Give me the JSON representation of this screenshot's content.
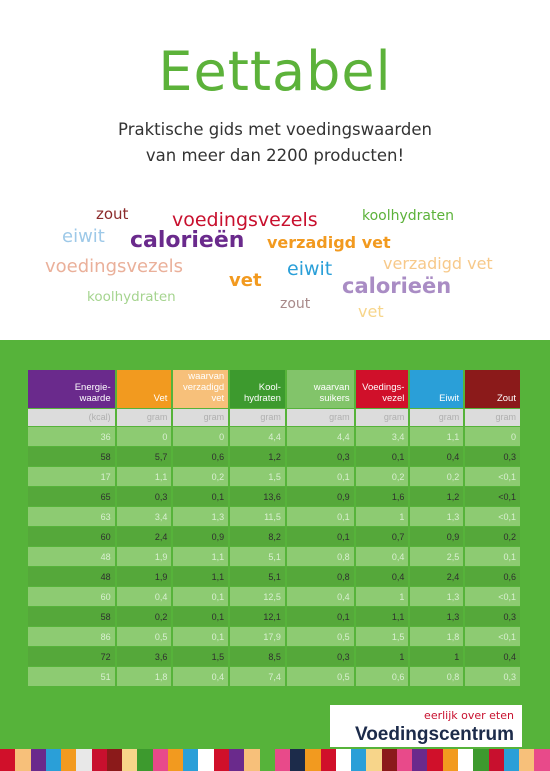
{
  "title": "Eettabel",
  "subtitle_line1": "Praktische gids met voedingswaarden",
  "subtitle_line2": "van meer dan 2200 producten!",
  "word_cloud": [
    {
      "text": "zout",
      "color": "#8b2a2a"
    },
    {
      "text": "voedingsvezels",
      "color": "#c8102e"
    },
    {
      "text": "koolhydraten",
      "color": "#5cb23a"
    },
    {
      "text": "eiwit",
      "color": "#9ec9e8"
    },
    {
      "text": "calorieën",
      "color": "#6a2a8c"
    },
    {
      "text": "verzadigd vet",
      "color": "#f29a1f"
    },
    {
      "text": "voedingsvezels",
      "color": "#eab09a"
    },
    {
      "text": "eiwit",
      "color": "#2a9fd8"
    },
    {
      "text": "verzadigd vet",
      "color": "#f7c98a"
    },
    {
      "text": "vet",
      "color": "#f29a1f"
    },
    {
      "text": "calorieën",
      "color": "#a98cc4"
    },
    {
      "text": "koolhydraten",
      "color": "#a5d48f"
    },
    {
      "text": "zout",
      "color": "#a88a8a"
    },
    {
      "text": "vet",
      "color": "#f7d58a"
    }
  ],
  "table": {
    "columns": [
      {
        "label": "Energie-\nwaarde",
        "unit": "(kcal)",
        "color": "#6a2a8c"
      },
      {
        "label": "Vet",
        "unit": "gram",
        "color": "#f29a1f"
      },
      {
        "label": "waarvan\nverzadigd\nvet",
        "unit": "gram",
        "color": "#f7c07a"
      },
      {
        "label": "Kool-\nhydraten",
        "unit": "gram",
        "color": "#3d9a2e"
      },
      {
        "label": "waarvan\nsuikers",
        "unit": "gram",
        "color": "#82c46a"
      },
      {
        "label": "Voedings-\nvezel",
        "unit": "gram",
        "color": "#d0102a"
      },
      {
        "label": "Eiwit",
        "unit": "gram",
        "color": "#2a9fd8"
      },
      {
        "label": "Zout",
        "unit": "gram",
        "color": "#8b1a1a"
      }
    ],
    "rows": [
      [
        "36",
        "0",
        "0",
        "4,4",
        "4,4",
        "3,4",
        "1,1",
        "0"
      ],
      [
        "58",
        "5,7",
        "0,6",
        "1,2",
        "0,3",
        "0,1",
        "0,4",
        "0,3"
      ],
      [
        "17",
        "1,1",
        "0,2",
        "1,5",
        "0,1",
        "0,2",
        "0,2",
        "<0,1"
      ],
      [
        "65",
        "0,3",
        "0,1",
        "13,6",
        "0,9",
        "1,6",
        "1,2",
        "<0,1"
      ],
      [
        "63",
        "3,4",
        "1,3",
        "11,5",
        "0,1",
        "1",
        "1,3",
        "<0,1"
      ],
      [
        "60",
        "2,4",
        "0,9",
        "8,2",
        "0,1",
        "0,7",
        "0,9",
        "0,2"
      ],
      [
        "48",
        "1,9",
        "1,1",
        "5,1",
        "0,8",
        "0,4",
        "2,5",
        "0,1"
      ],
      [
        "48",
        "1,9",
        "1,1",
        "5,1",
        "0,8",
        "0,4",
        "2,4",
        "0,6"
      ],
      [
        "60",
        "0,4",
        "0,1",
        "12,5",
        "0,4",
        "1",
        "1,3",
        "<0,1"
      ],
      [
        "58",
        "0,2",
        "0,1",
        "12,1",
        "0,1",
        "1,1",
        "1,3",
        "0,3"
      ],
      [
        "86",
        "0,5",
        "0,1",
        "17,9",
        "0,5",
        "1,5",
        "1,8",
        "<0,1"
      ],
      [
        "72",
        "3,6",
        "1,5",
        "8,5",
        "0,3",
        "1",
        "1",
        "0,4"
      ],
      [
        "51",
        "1,8",
        "0,4",
        "7,4",
        "0,5",
        "0,6",
        "0,8",
        "0,3"
      ]
    ]
  },
  "logo": {
    "tagline": "eerlijk over eten",
    "name": "Voedingscentrum"
  },
  "stripe_colors": [
    "#d0102a",
    "#f7c07a",
    "#6a2a8c",
    "#2a9fd8",
    "#f29a1f",
    "#e8e8e8",
    "#c8102e",
    "#8b1a1a",
    "#f7d58a",
    "#3d9a2e",
    "#e84a8a",
    "#f29a1f",
    "#2a9fd8",
    "#ffffff",
    "#d0102a",
    "#6a2a8c",
    "#f7c07a",
    "#56b33a",
    "#e84a8a",
    "#1c2b4a",
    "#f29a1f",
    "#d0102a",
    "#ffffff",
    "#2a9fd8",
    "#f7d58a",
    "#8b1a1a",
    "#e84a8a",
    "#6a2a8c",
    "#d0102a",
    "#f29a1f",
    "#ffffff",
    "#3d9a2e",
    "#c8102e",
    "#2a9fd8",
    "#f7c07a",
    "#e84a8a"
  ]
}
